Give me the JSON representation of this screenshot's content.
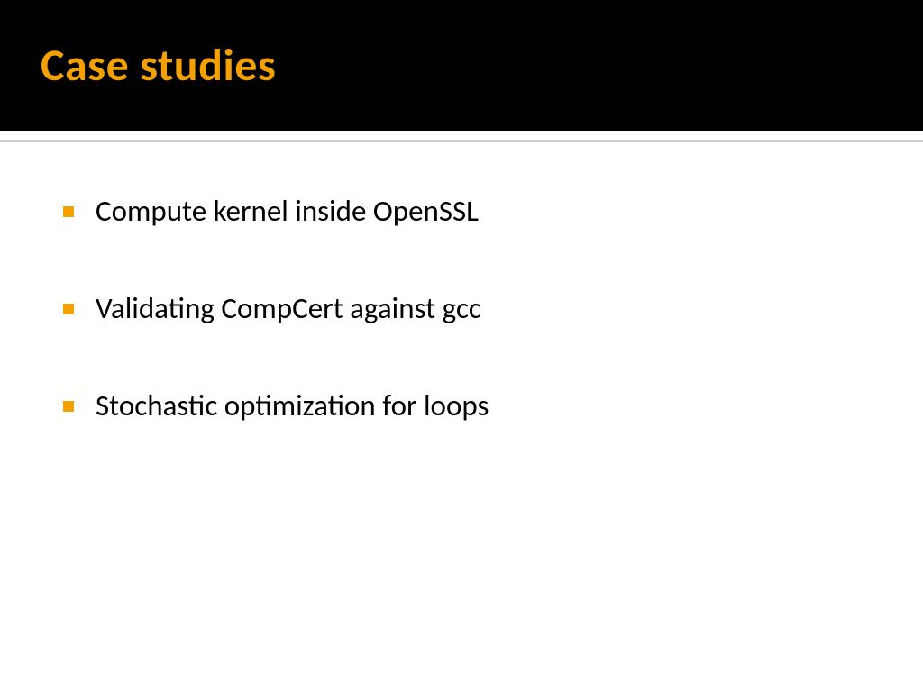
{
  "slide": {
    "title": "Case studies",
    "title_color": "#f2a100",
    "header_bg": "#000000",
    "divider_color": "#a6a6a6",
    "background_color": "#ffffff",
    "bullet_color": "#f2a100",
    "text_color": "#000000",
    "title_fontsize": 50,
    "body_fontsize": 33,
    "bullets": [
      "Compute kernel inside OpenSSL",
      "Validating CompCert against gcc",
      "Stochastic optimization for loops"
    ]
  }
}
